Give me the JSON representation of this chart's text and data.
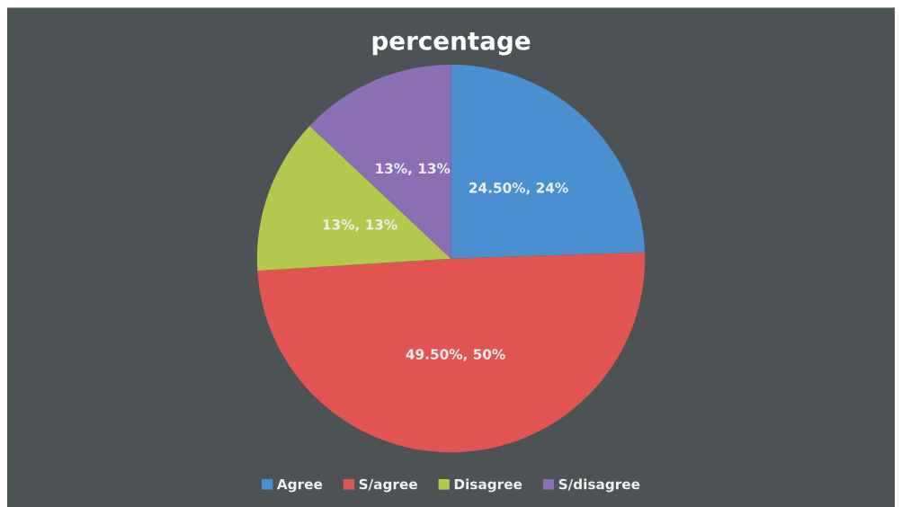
{
  "chart_data": {
    "type": "pie",
    "title": "percentage",
    "categories": [
      "Agree",
      "S/agree",
      "Disagree",
      "S/disagree"
    ],
    "values": [
      24.5,
      49.5,
      13,
      13
    ],
    "colors": [
      "#4a8fd0",
      "#e05552",
      "#b3c84c",
      "#8a6fb5"
    ],
    "value_labels": [
      "24.50%, 24%",
      "49.50%, 50%",
      "13%, 13%",
      "13%, 13%"
    ],
    "legend": "bottom"
  }
}
